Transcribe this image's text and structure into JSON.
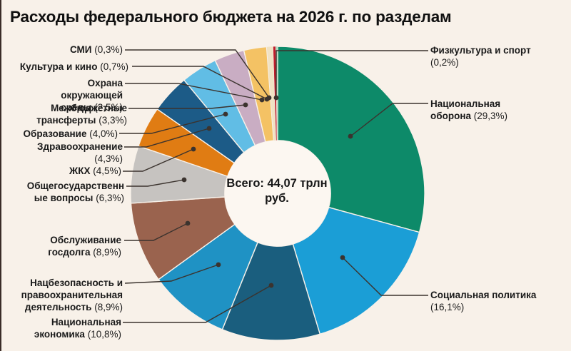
{
  "title": "Расходы федерального бюджета на 2026 г. по разделам",
  "center": {
    "line1": "Всего: 44,07 трлн",
    "line2": "руб."
  },
  "chart_data": {
    "type": "pie",
    "subtype": "donut",
    "title": "Расходы федерального бюджета на 2026 г. по разделам",
    "center_label": "Всего: 44,07 трлн руб.",
    "units": "%",
    "order": "clockwise from 12 o'clock, descending by value",
    "donut_hole_ratio": 0.36,
    "background_color": "#f8f1e9",
    "hole_color": "#fcf7f1",
    "slices": [
      {
        "label": "Национальная оборона",
        "value": 29.3,
        "color": "#0d8a69"
      },
      {
        "label": "Социальная политика",
        "value": 16.1,
        "color": "#1b9ed6"
      },
      {
        "label": "Национальная экономика",
        "value": 10.8,
        "color": "#1a5e7e"
      },
      {
        "label": "Нацбезопасность и правоохранительная деятельность",
        "value": 8.9,
        "color": "#1f92c4"
      },
      {
        "label": "Обслуживание госдолга",
        "value": 8.9,
        "color": "#9a634e"
      },
      {
        "label": "Общегосударственные вопросы",
        "value": 6.3,
        "color": "#c6c3c0"
      },
      {
        "label": "ЖКХ",
        "value": 4.5,
        "color": "#e07c13"
      },
      {
        "label": "Здравоохранение",
        "value": 4.3,
        "color": "#1c5b87"
      },
      {
        "label": "Образование",
        "value": 4.0,
        "color": "#61bde5"
      },
      {
        "label": "Межбюджетные трансферты",
        "value": 3.3,
        "color": "#c9adc3"
      },
      {
        "label": "Охрана окружающей среды",
        "value": 2.5,
        "color": "#f4c264"
      },
      {
        "label": "Культура и кино",
        "value": 0.7,
        "color": "#f0e2c4"
      },
      {
        "label": "СМИ",
        "value": 0.3,
        "color": "#c01e2d"
      },
      {
        "label": "Физкультура и спорт",
        "value": 0.2,
        "color": "#a9d4b6"
      }
    ]
  },
  "labels": [
    {
      "name": "СМИ",
      "pct": "(0,3%)"
    },
    {
      "name": "Культура и кино",
      "pct": "(0,7%)"
    },
    {
      "name": "Охрана окружающей среды",
      "pct": "(2,5%)"
    },
    {
      "name": "Межбюджетные трансферты",
      "pct": "(3,3%)"
    },
    {
      "name": "Образование",
      "pct": "(4,0%)"
    },
    {
      "name": "Здравоохранение",
      "pct": "(4,3%)"
    },
    {
      "name": "ЖКХ",
      "pct": "(4,5%)"
    },
    {
      "name": "Общегосударственные вопросы",
      "pct": "(6,3%)"
    },
    {
      "name": "Обслуживание госдолга",
      "pct": "(8,9%)"
    },
    {
      "name": "Нацбезопасность и правоохранительная деятельность",
      "pct": "(8,9%)"
    },
    {
      "name": "Национальная экономика",
      "pct": "(10,8%)"
    },
    {
      "name": "Физкультура и спорт",
      "pct": "(0,2%)"
    },
    {
      "name": "Национальная оборона",
      "pct": "(29,3%)"
    },
    {
      "name": "Социальная политика",
      "pct": "(16,1%)"
    }
  ]
}
